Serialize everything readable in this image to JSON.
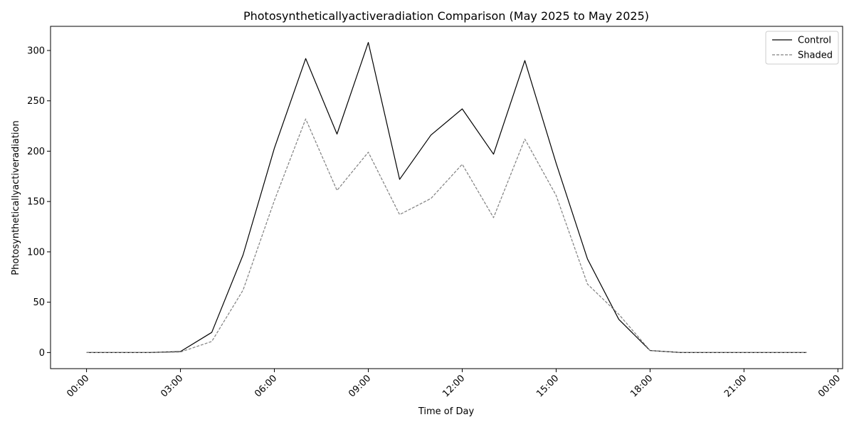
{
  "chart_data": {
    "type": "line",
    "title": "Photosyntheticallyactiveradiation Comparison (May 2025 to May 2025)",
    "xlabel": "Time of Day",
    "ylabel": "Photosyntheticallyactiveradiation",
    "x": [
      "00:00",
      "01:00",
      "02:00",
      "03:00",
      "04:00",
      "05:00",
      "06:00",
      "07:00",
      "08:00",
      "09:00",
      "10:00",
      "11:00",
      "12:00",
      "13:00",
      "14:00",
      "15:00",
      "16:00",
      "17:00",
      "18:00",
      "19:00",
      "20:00",
      "21:00",
      "22:00",
      "23:00"
    ],
    "x_ticks": [
      "00:00",
      "03:00",
      "06:00",
      "09:00",
      "12:00",
      "15:00",
      "18:00",
      "21:00",
      "00:00"
    ],
    "xlim_hours": [
      -1.15,
      24.15
    ],
    "ylim": [
      -16,
      324
    ],
    "y_ticks": [
      0,
      50,
      100,
      150,
      200,
      250,
      300
    ],
    "grid": false,
    "legend_position": "upper-right",
    "series": [
      {
        "name": "Control",
        "color": "#000000",
        "style": "solid",
        "values": [
          0,
          0,
          0,
          1,
          20,
          97,
          203,
          292,
          217,
          308,
          172,
          216,
          242,
          197,
          290,
          188,
          93,
          33,
          2,
          0,
          0,
          0,
          0,
          0
        ]
      },
      {
        "name": "Shaded",
        "color": "#808080",
        "style": "dashed",
        "values": [
          0,
          0,
          0,
          0.5,
          11,
          62,
          151,
          232,
          161,
          199,
          137,
          153,
          187,
          134,
          212,
          156,
          68,
          38,
          2,
          0,
          0,
          0,
          0,
          0
        ]
      }
    ]
  }
}
